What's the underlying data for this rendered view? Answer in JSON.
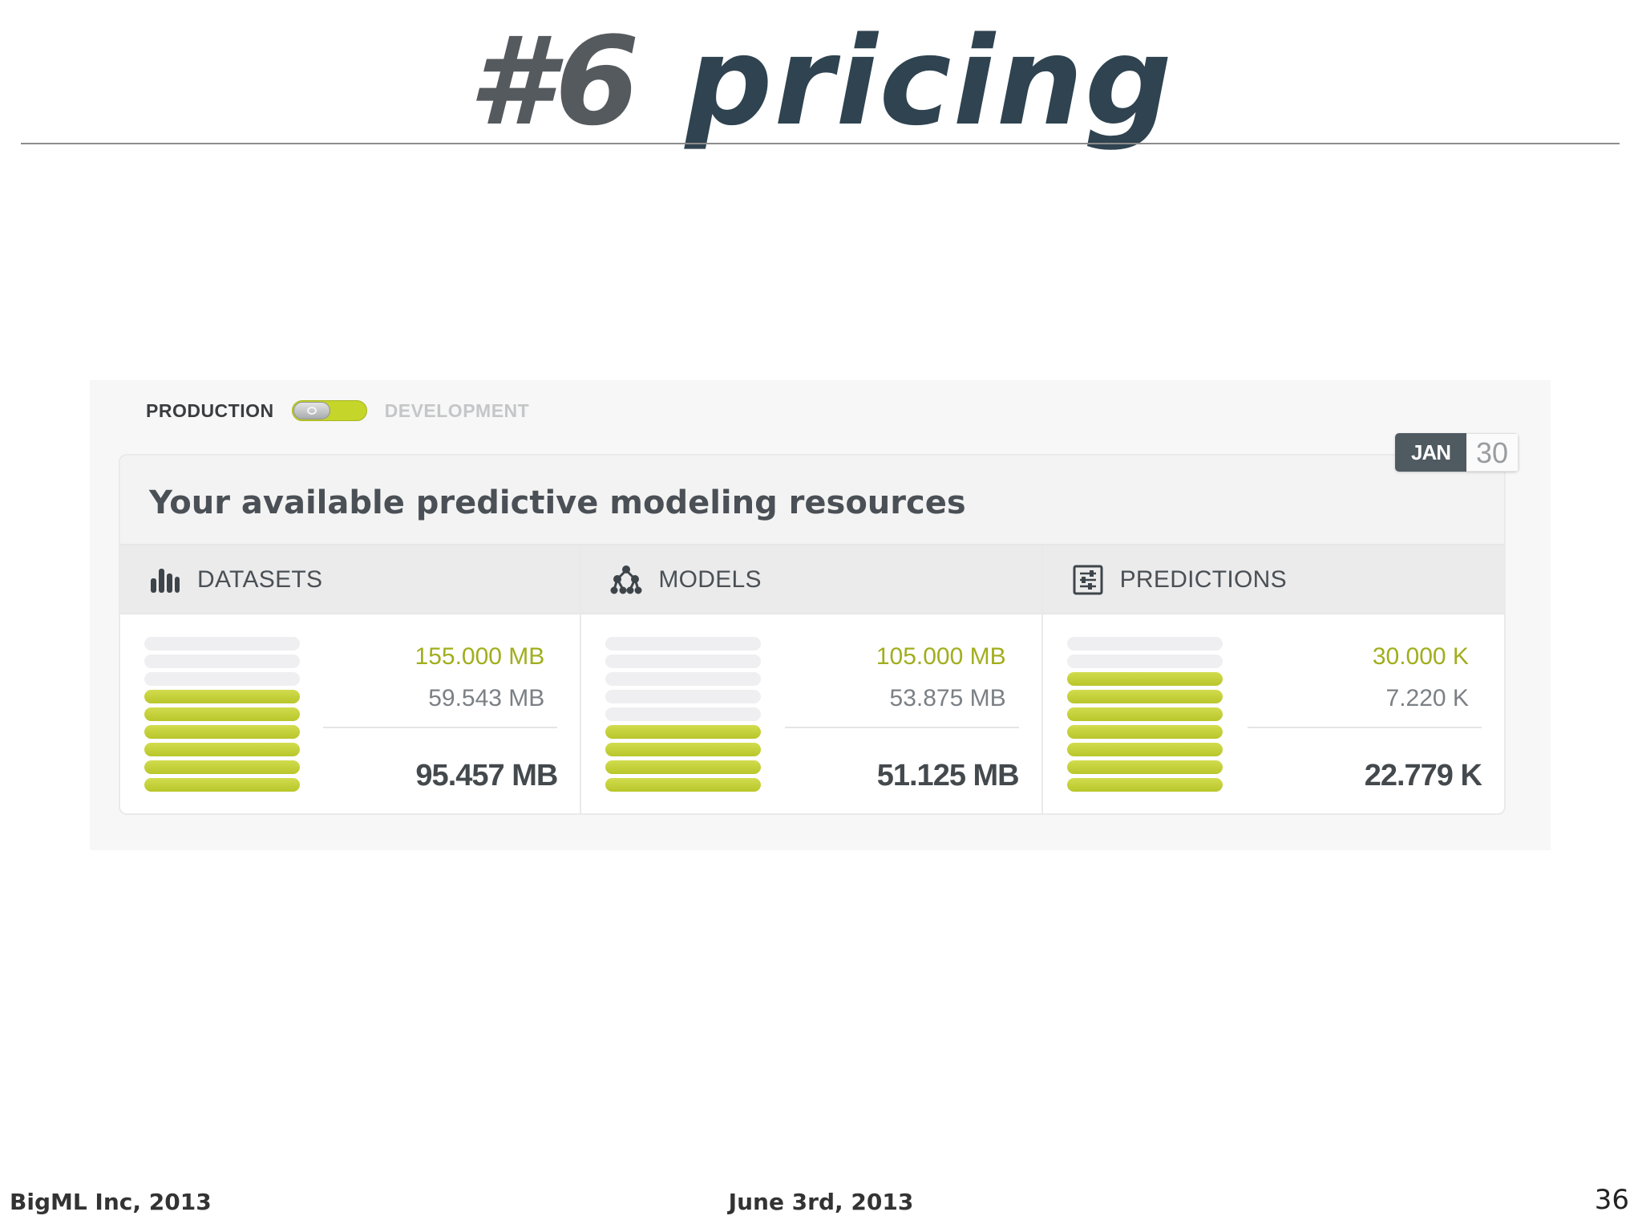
{
  "slide": {
    "title_hash": "#6",
    "title_word": "pricing",
    "footer_left": "BigML Inc, 2013",
    "footer_center": "June 3rd, 2013",
    "page_number": "36"
  },
  "mode_toggle": {
    "left_label": "PRODUCTION",
    "right_label": "DEVELOPMENT",
    "active": "PRODUCTION",
    "accent_color": "#c5d52a"
  },
  "date_badge": {
    "month": "JAN",
    "day": "30"
  },
  "resources": {
    "title": "Your available predictive modeling resources",
    "columns": [
      {
        "label": "DATASETS",
        "icon": "bar-chart-icon",
        "limit": "155.000 MB",
        "used": "59.543 MB",
        "available": "95.457 MB",
        "available_fraction": 0.616
      },
      {
        "label": "MODELS",
        "icon": "model-tree-icon",
        "limit": "105.000 MB",
        "used": "53.875 MB",
        "available": "51.125 MB",
        "available_fraction": 0.487
      },
      {
        "label": "PREDICTIONS",
        "icon": "sliders-icon",
        "limit": "30.000 K",
        "used": "7.220 K",
        "available": "22.779 K",
        "available_fraction": 0.759
      }
    ]
  }
}
